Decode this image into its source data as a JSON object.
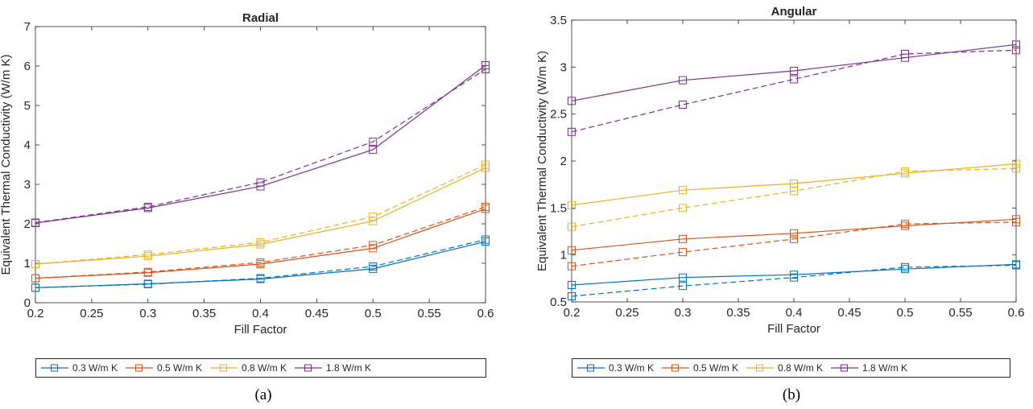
{
  "chart_data": [
    {
      "type": "line",
      "title": "Radial",
      "xlabel": "Fill Factor",
      "ylabel": "Equivalent Thermal Conductivity (W/m K)",
      "xlim": [
        0.2,
        0.6
      ],
      "ylim": [
        0,
        7
      ],
      "x": [
        0.2,
        0.3,
        0.4,
        0.5,
        0.6
      ],
      "xticks": [
        "0.2",
        "0.25",
        "0.3",
        "0.35",
        "0.4",
        "0.45",
        "0.5",
        "0.55",
        "0.6"
      ],
      "yticks": [
        "0",
        "1",
        "2",
        "3",
        "4",
        "5",
        "6",
        "7"
      ],
      "grid": false,
      "legend_position": "below",
      "caption": "(a)",
      "series": [
        {
          "name": "0.3 W/m K",
          "color": "#0072BD",
          "style": "solid",
          "values": [
            0.38,
            0.48,
            0.6,
            0.86,
            1.55
          ]
        },
        {
          "name": "0.3 W/m K",
          "color": "#0072BD",
          "style": "dashed",
          "values": [
            0.38,
            0.47,
            0.62,
            0.92,
            1.6
          ]
        },
        {
          "name": "0.5 W/m K",
          "color": "#D95319",
          "style": "solid",
          "values": [
            0.62,
            0.76,
            0.98,
            1.38,
            2.38
          ]
        },
        {
          "name": "0.5 W/m K",
          "color": "#D95319",
          "style": "dashed",
          "values": [
            0.62,
            0.78,
            1.02,
            1.46,
            2.43
          ]
        },
        {
          "name": "0.8 W/m K",
          "color": "#EDB120",
          "style": "solid",
          "values": [
            0.98,
            1.18,
            1.48,
            2.07,
            3.42
          ]
        },
        {
          "name": "0.8 W/m K",
          "color": "#EDB120",
          "style": "dashed",
          "values": [
            0.98,
            1.22,
            1.53,
            2.18,
            3.5
          ]
        },
        {
          "name": "1.8 W/m K",
          "color": "#7E2F8E",
          "style": "solid",
          "values": [
            2.02,
            2.4,
            2.95,
            3.88,
            6.02
          ]
        },
        {
          "name": "1.8 W/m K",
          "color": "#7E2F8E",
          "style": "dashed",
          "values": [
            2.03,
            2.43,
            3.05,
            4.08,
            5.92
          ]
        }
      ],
      "legend": [
        "0.3 W/m K",
        "0.5 W/m K",
        "0.8 W/m K",
        "1.8 W/m K"
      ]
    },
    {
      "type": "line",
      "title": "Angular",
      "xlabel": "Fill Factor",
      "ylabel": "Equivalent Thermal Conductivity (W/m K)",
      "xlim": [
        0.2,
        0.6
      ],
      "ylim": [
        0.5,
        3.5
      ],
      "x": [
        0.2,
        0.3,
        0.4,
        0.5,
        0.6
      ],
      "xticks": [
        "0.2",
        "0.25",
        "0.3",
        "0.35",
        "0.4",
        "0.45",
        "0.5",
        "0.55",
        "0.6"
      ],
      "yticks": [
        "0.5",
        "1",
        "1.5",
        "2",
        "2.5",
        "3",
        "3.5"
      ],
      "grid": false,
      "legend_position": "below",
      "caption": "(b)",
      "series": [
        {
          "name": "0.3 W/m K",
          "color": "#0072BD",
          "style": "solid",
          "values": [
            0.68,
            0.76,
            0.79,
            0.85,
            0.9
          ]
        },
        {
          "name": "0.3 W/m K",
          "color": "#0072BD",
          "style": "dashed",
          "values": [
            0.56,
            0.67,
            0.76,
            0.87,
            0.89
          ]
        },
        {
          "name": "0.5 W/m K",
          "color": "#D95319",
          "style": "solid",
          "values": [
            1.05,
            1.17,
            1.23,
            1.31,
            1.38
          ]
        },
        {
          "name": "0.5 W/m K",
          "color": "#D95319",
          "style": "dashed",
          "values": [
            0.88,
            1.03,
            1.17,
            1.33,
            1.35
          ]
        },
        {
          "name": "0.8 W/m K",
          "color": "#EDB120",
          "style": "solid",
          "values": [
            1.53,
            1.69,
            1.76,
            1.87,
            1.97
          ]
        },
        {
          "name": "0.8 W/m K",
          "color": "#EDB120",
          "style": "dashed",
          "values": [
            1.3,
            1.5,
            1.68,
            1.89,
            1.92
          ]
        },
        {
          "name": "1.8 W/m K",
          "color": "#7E2F8E",
          "style": "solid",
          "values": [
            2.64,
            2.86,
            2.96,
            3.1,
            3.24
          ]
        },
        {
          "name": "1.8 W/m K",
          "color": "#7E2F8E",
          "style": "dashed",
          "values": [
            2.31,
            2.6,
            2.87,
            3.14,
            3.18
          ]
        }
      ],
      "legend": [
        "0.3 W/m K",
        "0.5 W/m K",
        "0.8 W/m K",
        "1.8 W/m K"
      ]
    }
  ]
}
